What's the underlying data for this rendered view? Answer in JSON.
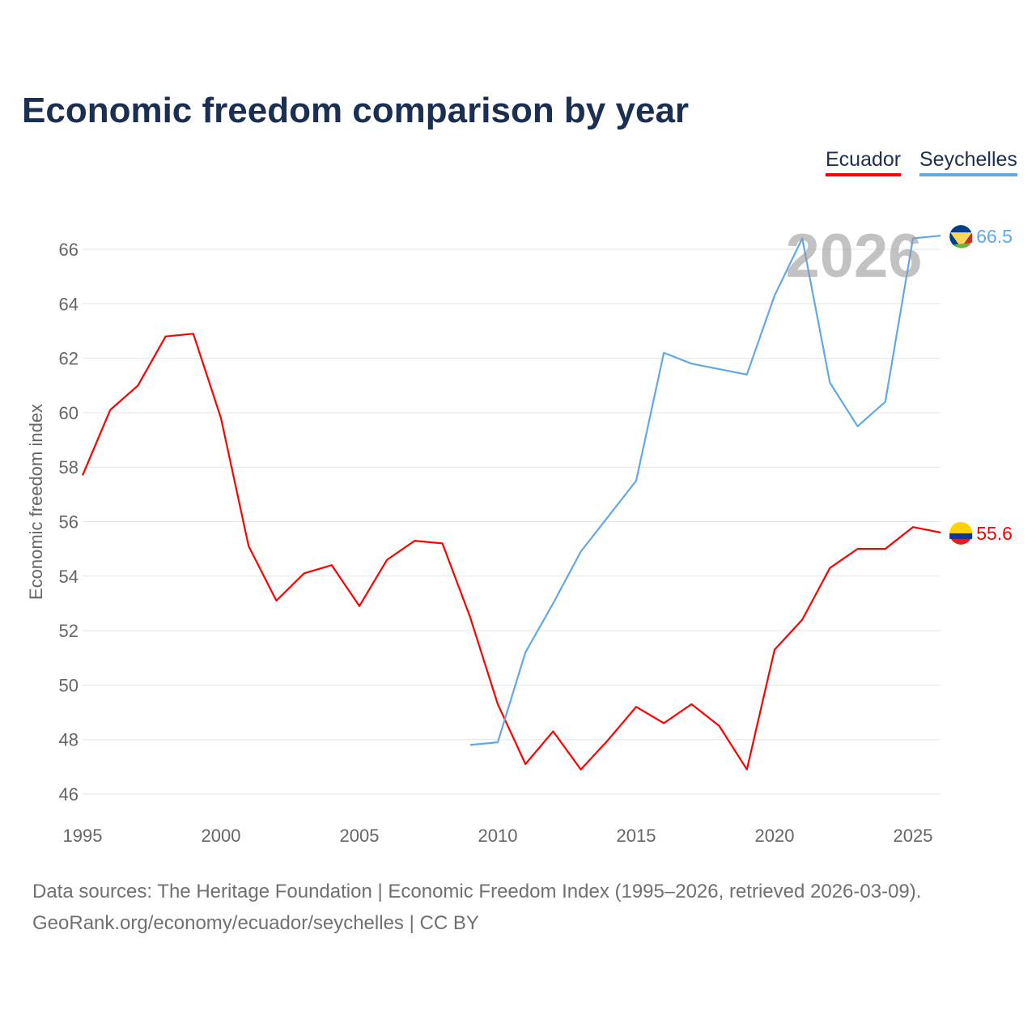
{
  "chart_data": {
    "type": "line",
    "title": "Economic freedom comparison by year",
    "xlabel": "",
    "ylabel": "Economic freedom index",
    "xlim": [
      1995,
      2026
    ],
    "ylim": [
      45.3,
      67.5
    ],
    "x_ticks": [
      1995,
      2000,
      2005,
      2010,
      2015,
      2020,
      2025
    ],
    "y_ticks": [
      46,
      48,
      50,
      52,
      54,
      56,
      58,
      60,
      62,
      64,
      66
    ],
    "grid": true,
    "legend_position": "top-right",
    "year_watermark": "2026",
    "series": [
      {
        "name": "Ecuador",
        "color": "#ff0000",
        "end_label": "55.6",
        "x": [
          1995,
          1996,
          1997,
          1998,
          1999,
          2000,
          2001,
          2002,
          2003,
          2004,
          2005,
          2006,
          2007,
          2008,
          2009,
          2010,
          2011,
          2012,
          2013,
          2014,
          2015,
          2016,
          2017,
          2018,
          2019,
          2020,
          2021,
          2022,
          2023,
          2024,
          2025,
          2026
        ],
        "values": [
          57.7,
          60.1,
          61.0,
          62.8,
          62.9,
          59.8,
          55.1,
          53.1,
          54.1,
          54.4,
          52.9,
          54.6,
          55.3,
          55.2,
          52.5,
          49.3,
          47.1,
          48.3,
          46.9,
          48.0,
          49.2,
          48.6,
          49.3,
          48.5,
          46.9,
          51.3,
          52.4,
          54.3,
          55.0,
          55.0,
          55.8,
          55.6
        ]
      },
      {
        "name": "Seychelles",
        "color": "#60a8e8",
        "end_label": "66.5",
        "x": [
          2009,
          2010,
          2011,
          2012,
          2013,
          2014,
          2015,
          2016,
          2017,
          2018,
          2019,
          2020,
          2021,
          2022,
          2023,
          2024,
          2025,
          2026
        ],
        "values": [
          47.8,
          47.9,
          51.2,
          53.0,
          54.9,
          56.2,
          57.5,
          62.2,
          61.8,
          61.6,
          61.4,
          64.3,
          66.4,
          61.1,
          59.5,
          60.4,
          66.4,
          66.5
        ]
      }
    ]
  },
  "footer": {
    "sources": "Data sources: The Heritage Foundation | Economic Freedom Index (1995–2026, retrieved 2026-03-09).",
    "credit": "GeoRank.org/economy/ecuador/seychelles | CC BY"
  }
}
